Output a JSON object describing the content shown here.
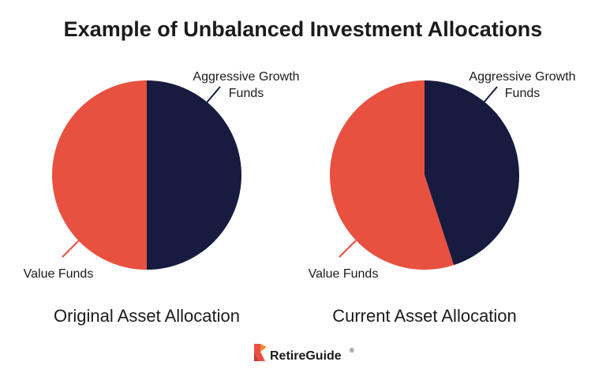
{
  "title": "Example of Unbalanced Investment Allocations",
  "colors": {
    "value_funds": "#e8503f",
    "aggressive_growth_funds": "#171b3f",
    "text": "#1b1b1b"
  },
  "chart_data": [
    {
      "type": "pie",
      "caption": "Original Asset Allocation",
      "slices": [
        {
          "label": "Value Funds",
          "value": 50,
          "color": "#e8503f"
        },
        {
          "label": "Aggressive Growth Funds",
          "label_lines": [
            "Aggressive Growth",
            "Funds"
          ],
          "value": 50,
          "color": "#171b3f"
        }
      ]
    },
    {
      "type": "pie",
      "caption": "Current Asset Allocation",
      "slices": [
        {
          "label": "Value Funds",
          "value": 55,
          "color": "#e8503f"
        },
        {
          "label": "Aggressive Growth Funds",
          "label_lines": [
            "Aggressive Growth",
            "Funds"
          ],
          "value": 45,
          "color": "#171b3f"
        }
      ]
    }
  ],
  "footer": {
    "brand": "RetireGuide",
    "registered": "®",
    "logo_icon": "retireguide-logo-icon"
  }
}
